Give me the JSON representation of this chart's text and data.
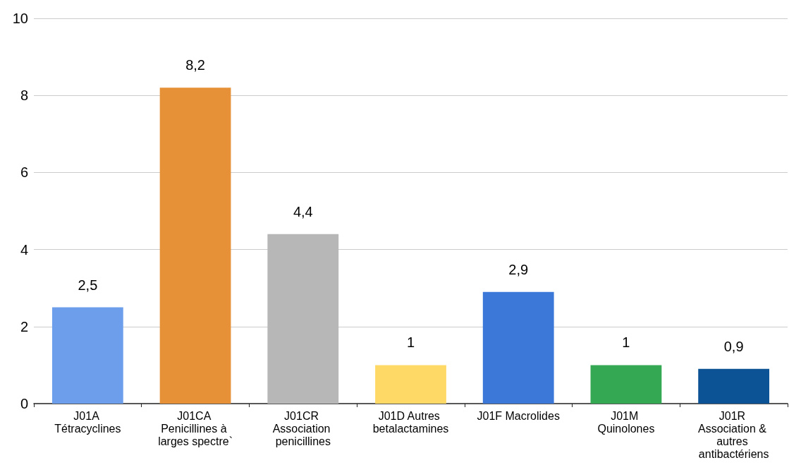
{
  "chart_data": {
    "type": "bar",
    "categories": [
      "J01A Tétracyclines",
      "J01CA Penicillines à larges spectre`",
      "J01CR Association penicillines",
      "J01D Autres betalactamines",
      "J01F Macrolides",
      "J01M Quinolones",
      "J01R Association & autres antibactériens"
    ],
    "values": [
      2.5,
      8.2,
      4.4,
      1,
      2.9,
      1,
      0.9
    ],
    "value_labels": [
      "2,5",
      "8,2",
      "4,4",
      "1",
      "2,9",
      "1",
      "0,9"
    ],
    "colors": [
      "#6d9eeb",
      "#e69138",
      "#b7b7b7",
      "#ffd966",
      "#3c78d8",
      "#34a853",
      "#0b5394"
    ],
    "ylim": [
      0,
      10
    ],
    "yticks": [
      0,
      2,
      4,
      6,
      8,
      10
    ],
    "grid": "y"
  }
}
